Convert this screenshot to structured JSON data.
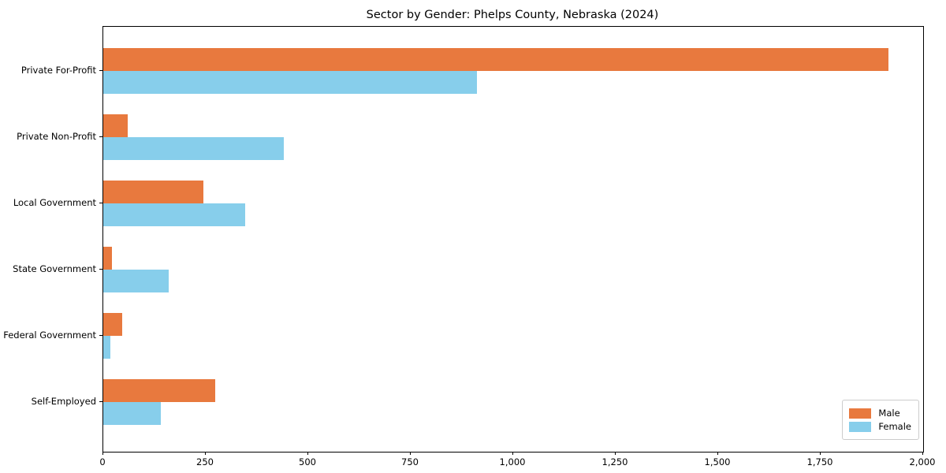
{
  "title": "Sector by Gender: Phelps County, Nebraska (2024)",
  "colors": {
    "male": "#E8793E",
    "female": "#87CEEB",
    "axis": "#000000",
    "legend_border": "#CCCCCC",
    "background": "#FFFFFF"
  },
  "chart_data": {
    "type": "bar",
    "orientation": "horizontal",
    "title": "Sector by Gender: Phelps County, Nebraska (2024)",
    "categories": [
      "Private For-Profit",
      "Private Non-Profit",
      "Local Government",
      "State Government",
      "Federal Government",
      "Self-Employed"
    ],
    "series": [
      {
        "name": "Male",
        "color": "#E8793E",
        "values": [
          1915,
          60,
          245,
          22,
          46,
          273
        ]
      },
      {
        "name": "Female",
        "color": "#87CEEB",
        "values": [
          912,
          440,
          347,
          160,
          18,
          140
        ]
      }
    ],
    "xlabel": "",
    "ylabel": "",
    "xlim": [
      0,
      2000
    ],
    "x_ticks": [
      0,
      250,
      500,
      750,
      1000,
      1250,
      1500,
      1750,
      2000
    ],
    "x_tick_labels": [
      "0",
      "250",
      "500",
      "750",
      "1,000",
      "1,250",
      "1,500",
      "1,750",
      "2,000"
    ],
    "grid": false,
    "legend_position": "lower right"
  },
  "legend": {
    "items": [
      {
        "label": "Male"
      },
      {
        "label": "Female"
      }
    ]
  }
}
